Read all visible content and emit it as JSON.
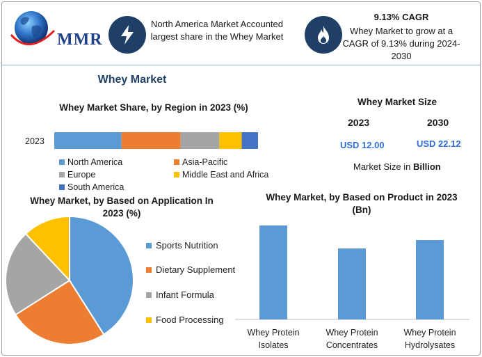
{
  "brand": {
    "logo_text": "MMR"
  },
  "header": {
    "left_text": "North America Market Accounted largest share in the Whey Market",
    "right_title": "9.13% CAGR",
    "right_text": "Whey Market to grow at a CAGR of 9.13% during 2024-2030"
  },
  "title": "Whey Market",
  "colors": {
    "north_america": "#5b9bd5",
    "asia_pacific": "#ed7d31",
    "europe": "#a5a5a5",
    "middle_east_africa": "#ffc000",
    "south_america": "#4472c4",
    "bar": "#5b9bd5",
    "dark_navy": "#1f3f66",
    "value_blue": "#2f6fd3"
  },
  "market_size": {
    "title": "Whey Market Size",
    "year_a": "2023",
    "year_b": "2030",
    "value_a": "USD 12.00",
    "value_b": "USD 22.12",
    "note_prefix": "Market Size in ",
    "note_unit": "Billion"
  },
  "chart_data": [
    {
      "type": "bar",
      "orientation": "horizontal-stacked",
      "title": "Whey Market Share, by Region in 2023 (%)",
      "categories": [
        "2023"
      ],
      "series": [
        {
          "name": "North America",
          "values": [
            33
          ]
        },
        {
          "name": "Asia-Pacific",
          "values": [
            29
          ]
        },
        {
          "name": "Europe",
          "values": [
            19
          ]
        },
        {
          "name": "Middle East and Africa",
          "values": [
            11
          ]
        },
        {
          "name": "South America",
          "values": [
            8
          ]
        }
      ],
      "legend": "bottom"
    },
    {
      "type": "pie",
      "title": "Whey Market, by Based on Application In 2023 (%)",
      "labels": [
        "Sports Nutrition",
        "Dietary Supplement",
        "Infant Formula",
        "Food Processing"
      ],
      "values": [
        41,
        25,
        22,
        12
      ],
      "legend": "right"
    },
    {
      "type": "bar",
      "title": "Whey Market, by Based on Product in 2023 (Bn)",
      "categories": [
        "Whey Protein Isolates",
        "Whey Protein Concentrates",
        "Whey Protein Hydrolysates"
      ],
      "category_lines": [
        [
          "Whey Protein",
          "Isolates"
        ],
        [
          "Whey Protein",
          "Concentrates"
        ],
        [
          "Whey Protein",
          "Hydrolysates"
        ]
      ],
      "values": [
        4.5,
        3.4,
        3.8
      ],
      "ylim": [
        0,
        5
      ],
      "grid": false
    }
  ]
}
